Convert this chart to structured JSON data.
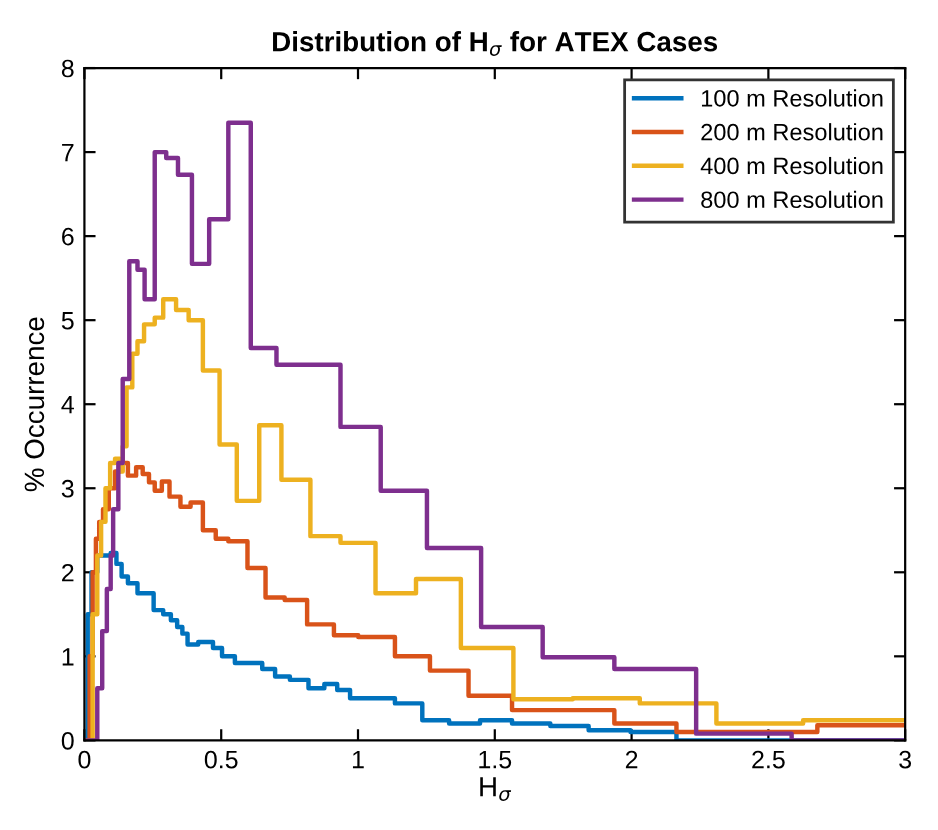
{
  "chart_data": {
    "type": "step",
    "title": "Distribution of H$_{σ}$ for ATEX Cases",
    "xlabel": "H$_{σ}$",
    "ylabel": "% Occurrence",
    "xlim": [
      0,
      3
    ],
    "ylim": [
      0,
      8
    ],
    "xticks": [
      0,
      0.5,
      1,
      1.5,
      2,
      2.5,
      3
    ],
    "yticks": [
      0,
      1,
      2,
      3,
      4,
      5,
      6,
      7,
      8
    ],
    "legend": "top right",
    "grid": false,
    "series": [
      {
        "name": "100 m Resolution",
        "color": "#0072bd",
        "x": [
          0,
          0.012,
          0.026,
          0.047,
          0.096,
          0.117,
          0.136,
          0.159,
          0.194,
          0.253,
          0.288,
          0.316,
          0.339,
          0.358,
          0.377,
          0.416,
          0.47,
          0.503,
          0.55,
          0.65,
          0.697,
          0.751,
          0.819,
          0.877,
          0.924,
          0.971,
          1.135,
          1.235,
          1.333,
          1.446,
          1.563,
          1.703,
          1.843,
          1.996,
          2.164,
          3
        ],
        "values": [
          0,
          1.5,
          2.0,
          2.2,
          2.23,
          2.1,
          1.95,
          1.87,
          1.75,
          1.55,
          1.5,
          1.43,
          1.35,
          1.27,
          1.14,
          1.17,
          1.1,
          1.0,
          0.92,
          0.85,
          0.76,
          0.72,
          0.62,
          0.67,
          0.6,
          0.5,
          0.44,
          0.24,
          0.2,
          0.24,
          0.2,
          0.17,
          0.12,
          0.1,
          0,
          0
        ]
      },
      {
        "name": "200 m Resolution",
        "color": "#d95319",
        "x": [
          0,
          0.019,
          0.03,
          0.042,
          0.054,
          0.068,
          0.089,
          0.112,
          0.129,
          0.159,
          0.189,
          0.213,
          0.236,
          0.257,
          0.283,
          0.311,
          0.351,
          0.388,
          0.433,
          0.48,
          0.526,
          0.596,
          0.662,
          0.732,
          0.814,
          0.912,
          1.001,
          1.135,
          1.263,
          1.404,
          1.563,
          1.937,
          2.164,
          2.679,
          3
        ],
        "values": [
          0,
          1.0,
          2.0,
          2.4,
          2.6,
          2.75,
          3.0,
          3.2,
          3.3,
          3.15,
          3.25,
          3.17,
          3.07,
          2.97,
          3.08,
          2.9,
          2.78,
          2.83,
          2.5,
          2.4,
          2.37,
          2.05,
          1.7,
          1.67,
          1.38,
          1.25,
          1.23,
          1.0,
          0.83,
          0.53,
          0.36,
          0.2,
          0.1,
          0.18,
          0.18
        ]
      },
      {
        "name": "400 m Resolution",
        "color": "#edb120",
        "x": [
          0.007,
          0.03,
          0.047,
          0.061,
          0.077,
          0.094,
          0.112,
          0.129,
          0.14,
          0.154,
          0.175,
          0.194,
          0.218,
          0.257,
          0.288,
          0.335,
          0.381,
          0.433,
          0.494,
          0.557,
          0.639,
          0.72,
          0.826,
          0.936,
          1.064,
          1.212,
          1.376,
          1.568,
          1.785,
          2.03,
          2.31,
          2.627,
          3
        ],
        "values": [
          0,
          1.5,
          2.2,
          2.6,
          3.0,
          3.3,
          3.35,
          3.2,
          3.5,
          4.2,
          4.6,
          4.75,
          4.95,
          5.03,
          5.25,
          5.12,
          5.0,
          4.4,
          3.52,
          2.85,
          3.75,
          3.1,
          2.43,
          2.35,
          1.75,
          1.92,
          1.1,
          0.49,
          0.5,
          0.44,
          0.2,
          0.24,
          0.24
        ]
      },
      {
        "name": "800 m Resolution",
        "color": "#7e2f8e",
        "x": [
          0,
          0.019,
          0.047,
          0.065,
          0.082,
          0.096,
          0.105,
          0.124,
          0.14,
          0.164,
          0.194,
          0.22,
          0.257,
          0.299,
          0.342,
          0.393,
          0.456,
          0.526,
          0.608,
          0.702,
          0.936,
          1.083,
          1.252,
          1.45,
          1.675,
          1.937,
          2.236,
          2.585,
          3
        ],
        "values": [
          0,
          0,
          0.62,
          1.3,
          1.8,
          2.2,
          2.75,
          3.3,
          4.3,
          5.7,
          5.6,
          5.25,
          7.0,
          6.93,
          6.73,
          5.67,
          6.2,
          7.35,
          4.67,
          4.47,
          3.73,
          2.97,
          2.29,
          1.35,
          0.99,
          0.85,
          0.08,
          0,
          0
        ]
      }
    ]
  }
}
